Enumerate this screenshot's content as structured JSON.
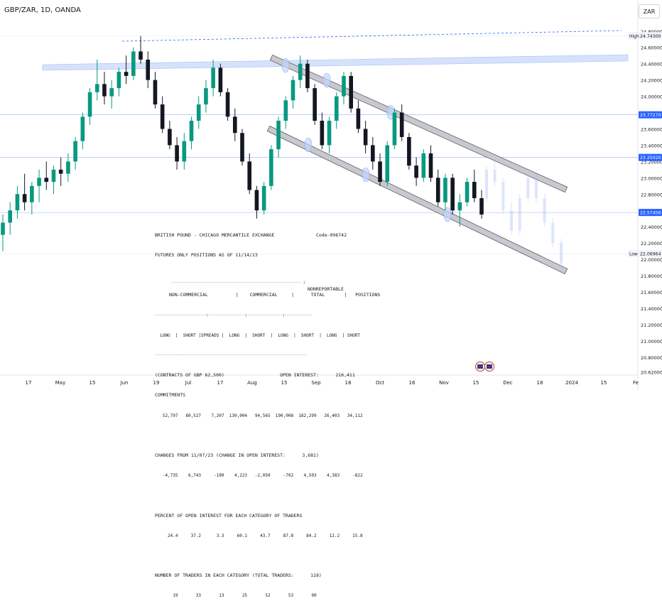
{
  "header": {
    "symbol_title": "GBP/ZAR, 1D, OANDA",
    "currency": "ZAR"
  },
  "colors": {
    "up": "#089981",
    "down": "#131722",
    "upper_bar": "#d6e2fb",
    "channel_fill": "#c8c8ce",
    "channel_stroke": "#5d606b",
    "dashed_line": "#2962ff",
    "price_tag": "#2962ff"
  },
  "chart_data": {
    "type": "candlestick",
    "symbol": "GBP/ZAR",
    "interval": "1D",
    "source": "OANDA",
    "ylim": [
      20.58,
      24.92
    ],
    "y_ticks": [
      "24.80000",
      "24.60000",
      "24.40000",
      "24.20000",
      "24.00000",
      "23.80000",
      "23.60000",
      "23.40000",
      "23.20000",
      "23.00000",
      "22.80000",
      "22.60000",
      "22.40000",
      "22.20000",
      "22.00000",
      "21.80000",
      "21.60000",
      "21.40000",
      "21.20000",
      "21.00000",
      "20.80000",
      "20.62000"
    ],
    "x_ticks": [
      "17",
      "May",
      "15",
      "Jun",
      "19",
      "Jul",
      "17",
      "Aug",
      "15",
      "Sep",
      "18",
      "Oct",
      "16",
      "Nov",
      "15",
      "Dec",
      "18",
      "2024",
      "15",
      "Fe"
    ],
    "price_labels": [
      {
        "label": "High",
        "value": "24.74300",
        "style": "plain"
      },
      {
        "label": "",
        "value": "23.77270",
        "style": "blue"
      },
      {
        "label": "",
        "value": "23.25020",
        "style": "blue"
      },
      {
        "label": "",
        "value": "22.57456",
        "style": "blue"
      },
      {
        "label": "Low",
        "value": "22.06964",
        "style": "plain"
      }
    ],
    "candles_ohlc": [
      [
        22.3,
        22.55,
        22.1,
        22.45
      ],
      [
        22.45,
        22.7,
        22.3,
        22.6
      ],
      [
        22.6,
        22.9,
        22.5,
        22.8
      ],
      [
        22.8,
        23.05,
        22.6,
        22.7
      ],
      [
        22.7,
        22.95,
        22.55,
        22.9
      ],
      [
        22.9,
        23.1,
        22.7,
        23.0
      ],
      [
        23.0,
        23.2,
        22.85,
        22.95
      ],
      [
        22.95,
        23.15,
        22.8,
        23.1
      ],
      [
        23.1,
        23.25,
        22.9,
        23.05
      ],
      [
        23.05,
        23.3,
        22.95,
        23.2
      ],
      [
        23.2,
        23.5,
        23.1,
        23.45
      ],
      [
        23.45,
        23.8,
        23.35,
        23.75
      ],
      [
        23.75,
        24.1,
        23.65,
        24.05
      ],
      [
        24.05,
        24.45,
        23.95,
        24.15
      ],
      [
        24.15,
        24.3,
        23.9,
        24.0
      ],
      [
        24.0,
        24.2,
        23.85,
        24.1
      ],
      [
        24.1,
        24.35,
        24.0,
        24.3
      ],
      [
        24.3,
        24.5,
        24.15,
        24.25
      ],
      [
        24.25,
        24.6,
        24.2,
        24.55
      ],
      [
        24.55,
        24.74,
        24.4,
        24.45
      ],
      [
        24.45,
        24.55,
        24.1,
        24.2
      ],
      [
        24.2,
        24.3,
        23.85,
        23.9
      ],
      [
        23.9,
        24.0,
        23.55,
        23.6
      ],
      [
        23.6,
        23.7,
        23.35,
        23.4
      ],
      [
        23.4,
        23.5,
        23.1,
        23.2
      ],
      [
        23.2,
        23.55,
        23.1,
        23.45
      ],
      [
        23.45,
        23.75,
        23.35,
        23.7
      ],
      [
        23.7,
        24.0,
        23.6,
        23.9
      ],
      [
        23.9,
        24.2,
        23.8,
        24.1
      ],
      [
        24.1,
        24.45,
        24.0,
        24.35
      ],
      [
        24.35,
        24.4,
        24.0,
        24.05
      ],
      [
        24.05,
        24.1,
        23.7,
        23.75
      ],
      [
        23.75,
        23.85,
        23.45,
        23.55
      ],
      [
        23.55,
        23.6,
        23.15,
        23.2
      ],
      [
        23.2,
        23.3,
        22.8,
        22.85
      ],
      [
        22.85,
        22.9,
        22.5,
        22.6
      ],
      [
        22.6,
        22.95,
        22.55,
        22.9
      ],
      [
        22.9,
        23.4,
        22.85,
        23.35
      ],
      [
        23.35,
        23.75,
        23.25,
        23.7
      ],
      [
        23.7,
        24.0,
        23.6,
        23.95
      ],
      [
        23.95,
        24.25,
        23.85,
        24.2
      ],
      [
        24.2,
        24.5,
        24.1,
        24.4
      ],
      [
        24.4,
        24.45,
        24.05,
        24.1
      ],
      [
        24.1,
        24.15,
        23.65,
        23.7
      ],
      [
        23.7,
        23.8,
        23.35,
        23.4
      ],
      [
        23.4,
        23.75,
        23.3,
        23.7
      ],
      [
        23.7,
        24.05,
        23.6,
        24.0
      ],
      [
        24.0,
        24.3,
        23.9,
        24.25
      ],
      [
        24.25,
        24.3,
        23.8,
        23.85
      ],
      [
        23.85,
        23.95,
        23.55,
        23.6
      ],
      [
        23.6,
        23.7,
        23.3,
        23.4
      ],
      [
        23.4,
        23.5,
        23.1,
        23.2
      ],
      [
        23.2,
        23.3,
        22.9,
        22.95
      ],
      [
        22.95,
        23.45,
        22.9,
        23.4
      ],
      [
        23.4,
        23.85,
        23.35,
        23.8
      ],
      [
        23.8,
        23.9,
        23.45,
        23.5
      ],
      [
        23.5,
        23.55,
        23.1,
        23.15
      ],
      [
        23.15,
        23.25,
        22.9,
        23.0
      ],
      [
        23.0,
        23.35,
        22.95,
        23.3
      ],
      [
        23.3,
        23.4,
        22.95,
        23.0
      ],
      [
        23.0,
        23.1,
        22.65,
        22.7
      ],
      [
        22.7,
        23.05,
        22.6,
        23.0
      ],
      [
        23.0,
        23.05,
        22.55,
        22.6
      ],
      [
        22.6,
        22.8,
        22.4,
        22.7
      ],
      [
        22.7,
        23.0,
        22.65,
        22.95
      ],
      [
        22.95,
        23.1,
        22.7,
        22.75
      ],
      [
        22.75,
        22.85,
        22.5,
        22.55
      ]
    ],
    "projection_ohlc": [
      [
        22.75,
        23.15,
        22.7,
        23.1
      ],
      [
        23.1,
        23.2,
        22.9,
        22.95
      ],
      [
        22.95,
        23.0,
        22.55,
        22.6
      ],
      [
        22.6,
        22.7,
        22.3,
        22.35
      ],
      [
        22.35,
        22.8,
        22.3,
        22.75
      ],
      [
        22.75,
        23.05,
        22.7,
        23.0
      ],
      [
        23.0,
        23.05,
        22.7,
        22.75
      ],
      [
        22.75,
        22.8,
        22.4,
        22.45
      ],
      [
        22.45,
        22.5,
        22.15,
        22.2
      ],
      [
        22.2,
        22.25,
        21.9,
        21.95
      ]
    ]
  },
  "cot_report": {
    "title": "BRITISH POUND - CHICAGO MERCANTILE EXCHANGE",
    "code": "Code-096742",
    "subtitle": "FUTURES ONLY POSITIONS AS OF 11/14/23",
    "separator_top": "------------------------------------------------------------------ |",
    "nonreportable": "NONREPORTABLE",
    "group_header": "NON-COMMERCIAL          |    COMMERCIAL     |      TOTAL       |   POSITIONS",
    "divider": "--------------------------|-------------------|------------------|--------------",
    "col_header": "  LONG  |  SHORT |SPREADS |  LONG  |  SHORT  |  LONG  |  SHORT  |  LONG  | SHORT",
    "divider2": "---------------------------------------------------------------------------------",
    "contracts_line": "(CONTRACTS OF GBP 62,500)                    OPEN INTEREST:      216,411",
    "commitments_label": "COMMITMENTS",
    "commitments_values": "   52,797   80,527    7,207  130,004   94,565  190,008  182,299   26,403   34,112",
    "changes_label": "CHANGES FROM 11/07/23 (CHANGE IN OPEN INTEREST:      3,681)",
    "changes_values": "   -4,735    6,743     -190    4,223   -2,050     -702    4,503    4,383     -822",
    "percent_label": "PERCENT OF OPEN INTEREST FOR EACH CATEGORY OF TRADERS",
    "percent_values": "     24.4     37.2      3.3     60.1     43.7     87.8     84.2     12.2     15.8",
    "traders_label": "NUMBER OF TRADERS IN EACH CATEGORY (TOTAL TRADERS:      118)",
    "traders_values": "       19       33       13       25       52       53       90"
  }
}
